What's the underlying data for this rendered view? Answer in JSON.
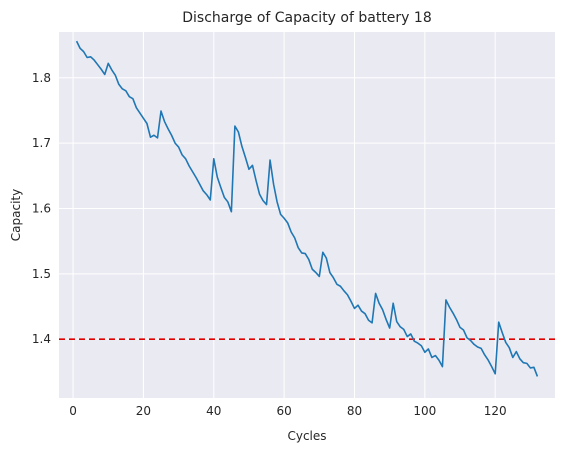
{
  "chart_data": {
    "type": "line",
    "title": "Discharge of Capacity of battery 18",
    "xlabel": "Cycles",
    "ylabel": "Capacity",
    "xlim": [
      -4,
      137
    ],
    "ylim": [
      1.31,
      1.87
    ],
    "xticks": [
      0,
      20,
      40,
      60,
      80,
      100,
      120
    ],
    "yticks": [
      1.4,
      1.5,
      1.6,
      1.7,
      1.8
    ],
    "ytick_labels": [
      "1.4",
      "1.5",
      "1.6",
      "1.7",
      "1.8"
    ],
    "grid": true,
    "threshold": {
      "value": 1.4,
      "color": "#e00000",
      "style": "dashed"
    },
    "series": [
      {
        "color": "#1f77b4",
        "x": [
          1,
          2,
          3,
          4,
          5,
          6,
          7,
          8,
          9,
          10,
          11,
          12,
          13,
          14,
          15,
          16,
          17,
          18,
          19,
          20,
          21,
          22,
          23,
          24,
          25,
          26,
          27,
          28,
          29,
          30,
          31,
          32,
          33,
          34,
          35,
          36,
          37,
          38,
          39,
          40,
          41,
          42,
          43,
          44,
          45,
          46,
          47,
          48,
          49,
          50,
          51,
          52,
          53,
          54,
          55,
          56,
          57,
          58,
          59,
          60,
          61,
          62,
          63,
          64,
          65,
          66,
          67,
          68,
          69,
          70,
          71,
          72,
          73,
          74,
          75,
          76,
          77,
          78,
          79,
          80,
          81,
          82,
          83,
          84,
          85,
          86,
          87,
          88,
          89,
          90,
          91,
          92,
          93,
          94,
          95,
          96,
          97,
          98,
          99,
          100,
          101,
          102,
          103,
          104,
          105,
          106,
          107,
          108,
          109,
          110,
          111,
          112,
          113,
          114,
          115,
          116,
          117,
          118,
          119,
          120,
          121,
          122,
          123,
          124,
          125,
          126,
          127,
          128,
          129,
          130,
          131,
          132
        ],
        "y": [
          1.856,
          1.845,
          1.84,
          1.831,
          1.832,
          1.827,
          1.82,
          1.813,
          1.805,
          1.822,
          1.812,
          1.804,
          1.79,
          1.783,
          1.78,
          1.771,
          1.768,
          1.754,
          1.746,
          1.738,
          1.73,
          1.709,
          1.712,
          1.708,
          1.749,
          1.733,
          1.722,
          1.712,
          1.7,
          1.694,
          1.682,
          1.676,
          1.665,
          1.656,
          1.647,
          1.637,
          1.627,
          1.621,
          1.613,
          1.676,
          1.648,
          1.632,
          1.617,
          1.61,
          1.595,
          1.726,
          1.717,
          1.695,
          1.678,
          1.66,
          1.666,
          1.643,
          1.622,
          1.612,
          1.606,
          1.674,
          1.637,
          1.61,
          1.591,
          1.585,
          1.578,
          1.564,
          1.555,
          1.54,
          1.532,
          1.531,
          1.522,
          1.507,
          1.502,
          1.496,
          1.533,
          1.524,
          1.502,
          1.494,
          1.484,
          1.481,
          1.474,
          1.468,
          1.458,
          1.447,
          1.452,
          1.443,
          1.439,
          1.429,
          1.425,
          1.47,
          1.455,
          1.445,
          1.43,
          1.417,
          1.455,
          1.427,
          1.419,
          1.415,
          1.404,
          1.408,
          1.397,
          1.394,
          1.39,
          1.38,
          1.385,
          1.372,
          1.375,
          1.368,
          1.358,
          1.46,
          1.449,
          1.44,
          1.43,
          1.418,
          1.414,
          1.402,
          1.398,
          1.392,
          1.388,
          1.386,
          1.376,
          1.368,
          1.358,
          1.347,
          1.426,
          1.41,
          1.395,
          1.387,
          1.372,
          1.381,
          1.37,
          1.364,
          1.363,
          1.356,
          1.357,
          1.343
        ]
      }
    ]
  }
}
